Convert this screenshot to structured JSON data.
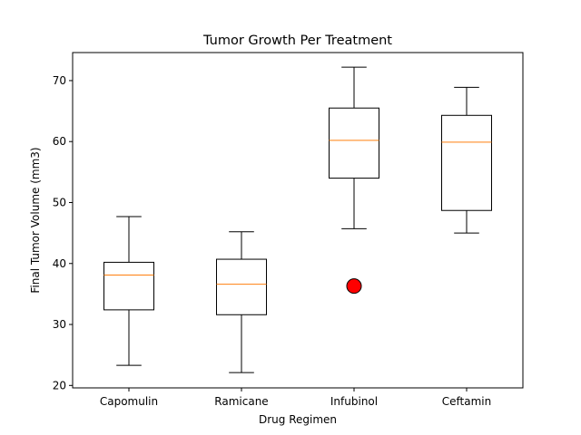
{
  "chart_data": {
    "type": "boxplot",
    "title": "Tumor Growth Per Treatment",
    "xlabel": "Drug Regimen",
    "ylabel": "Final Tumor Volume (mm3)",
    "ylim": [
      19.6,
      74.6
    ],
    "yticks": [
      20,
      30,
      40,
      50,
      60,
      70
    ],
    "grid": false,
    "colors": {
      "box": "#000000",
      "median": "#ff7f0e",
      "outlier_fill": "#ff0000",
      "outlier_edge": "#000000"
    },
    "categories": [
      "Capomulin",
      "Ramicane",
      "Infubinol",
      "Ceftamin"
    ],
    "boxes": [
      {
        "label": "Capomulin",
        "whisker_low": 23.3,
        "q1": 32.4,
        "median": 38.1,
        "q3": 40.2,
        "whisker_high": 47.7,
        "outliers": []
      },
      {
        "label": "Ramicane",
        "whisker_low": 22.1,
        "q1": 31.6,
        "median": 36.6,
        "q3": 40.7,
        "whisker_high": 45.2,
        "outliers": []
      },
      {
        "label": "Infubinol",
        "whisker_low": 45.7,
        "q1": 54.0,
        "median": 60.2,
        "q3": 65.5,
        "whisker_high": 72.2,
        "outliers": [
          36.3
        ]
      },
      {
        "label": "Ceftamin",
        "whisker_low": 45.0,
        "q1": 48.7,
        "median": 59.9,
        "q3": 64.3,
        "whisker_high": 68.9,
        "outliers": []
      }
    ]
  }
}
